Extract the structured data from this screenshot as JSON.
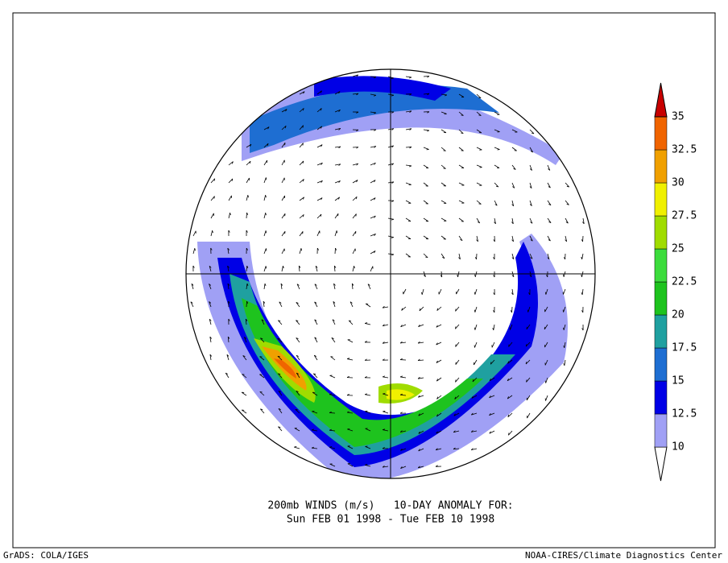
{
  "title": [
    "200mb WINDS (m/s)   10-DAY ANOMALY FOR:",
    "Sun FEB 01 1998 - Tue FEB 10 1998"
  ],
  "footer_left": "GrADS: COLA/IGES",
  "footer_right": "NOAA-CIRES/Climate Diagnostics Center",
  "colorbar": {
    "levels": [
      10,
      12.5,
      15,
      17.5,
      20,
      22.5,
      25,
      27.5,
      30,
      32.5,
      35
    ],
    "colors": [
      "#a0a0f5",
      "#0000e6",
      "#1e6ed2",
      "#1fa0a0",
      "#1ec31e",
      "#3cdc3c",
      "#a0dc00",
      "#f0f000",
      "#f0a000",
      "#f06400",
      "#c80000"
    ]
  }
}
